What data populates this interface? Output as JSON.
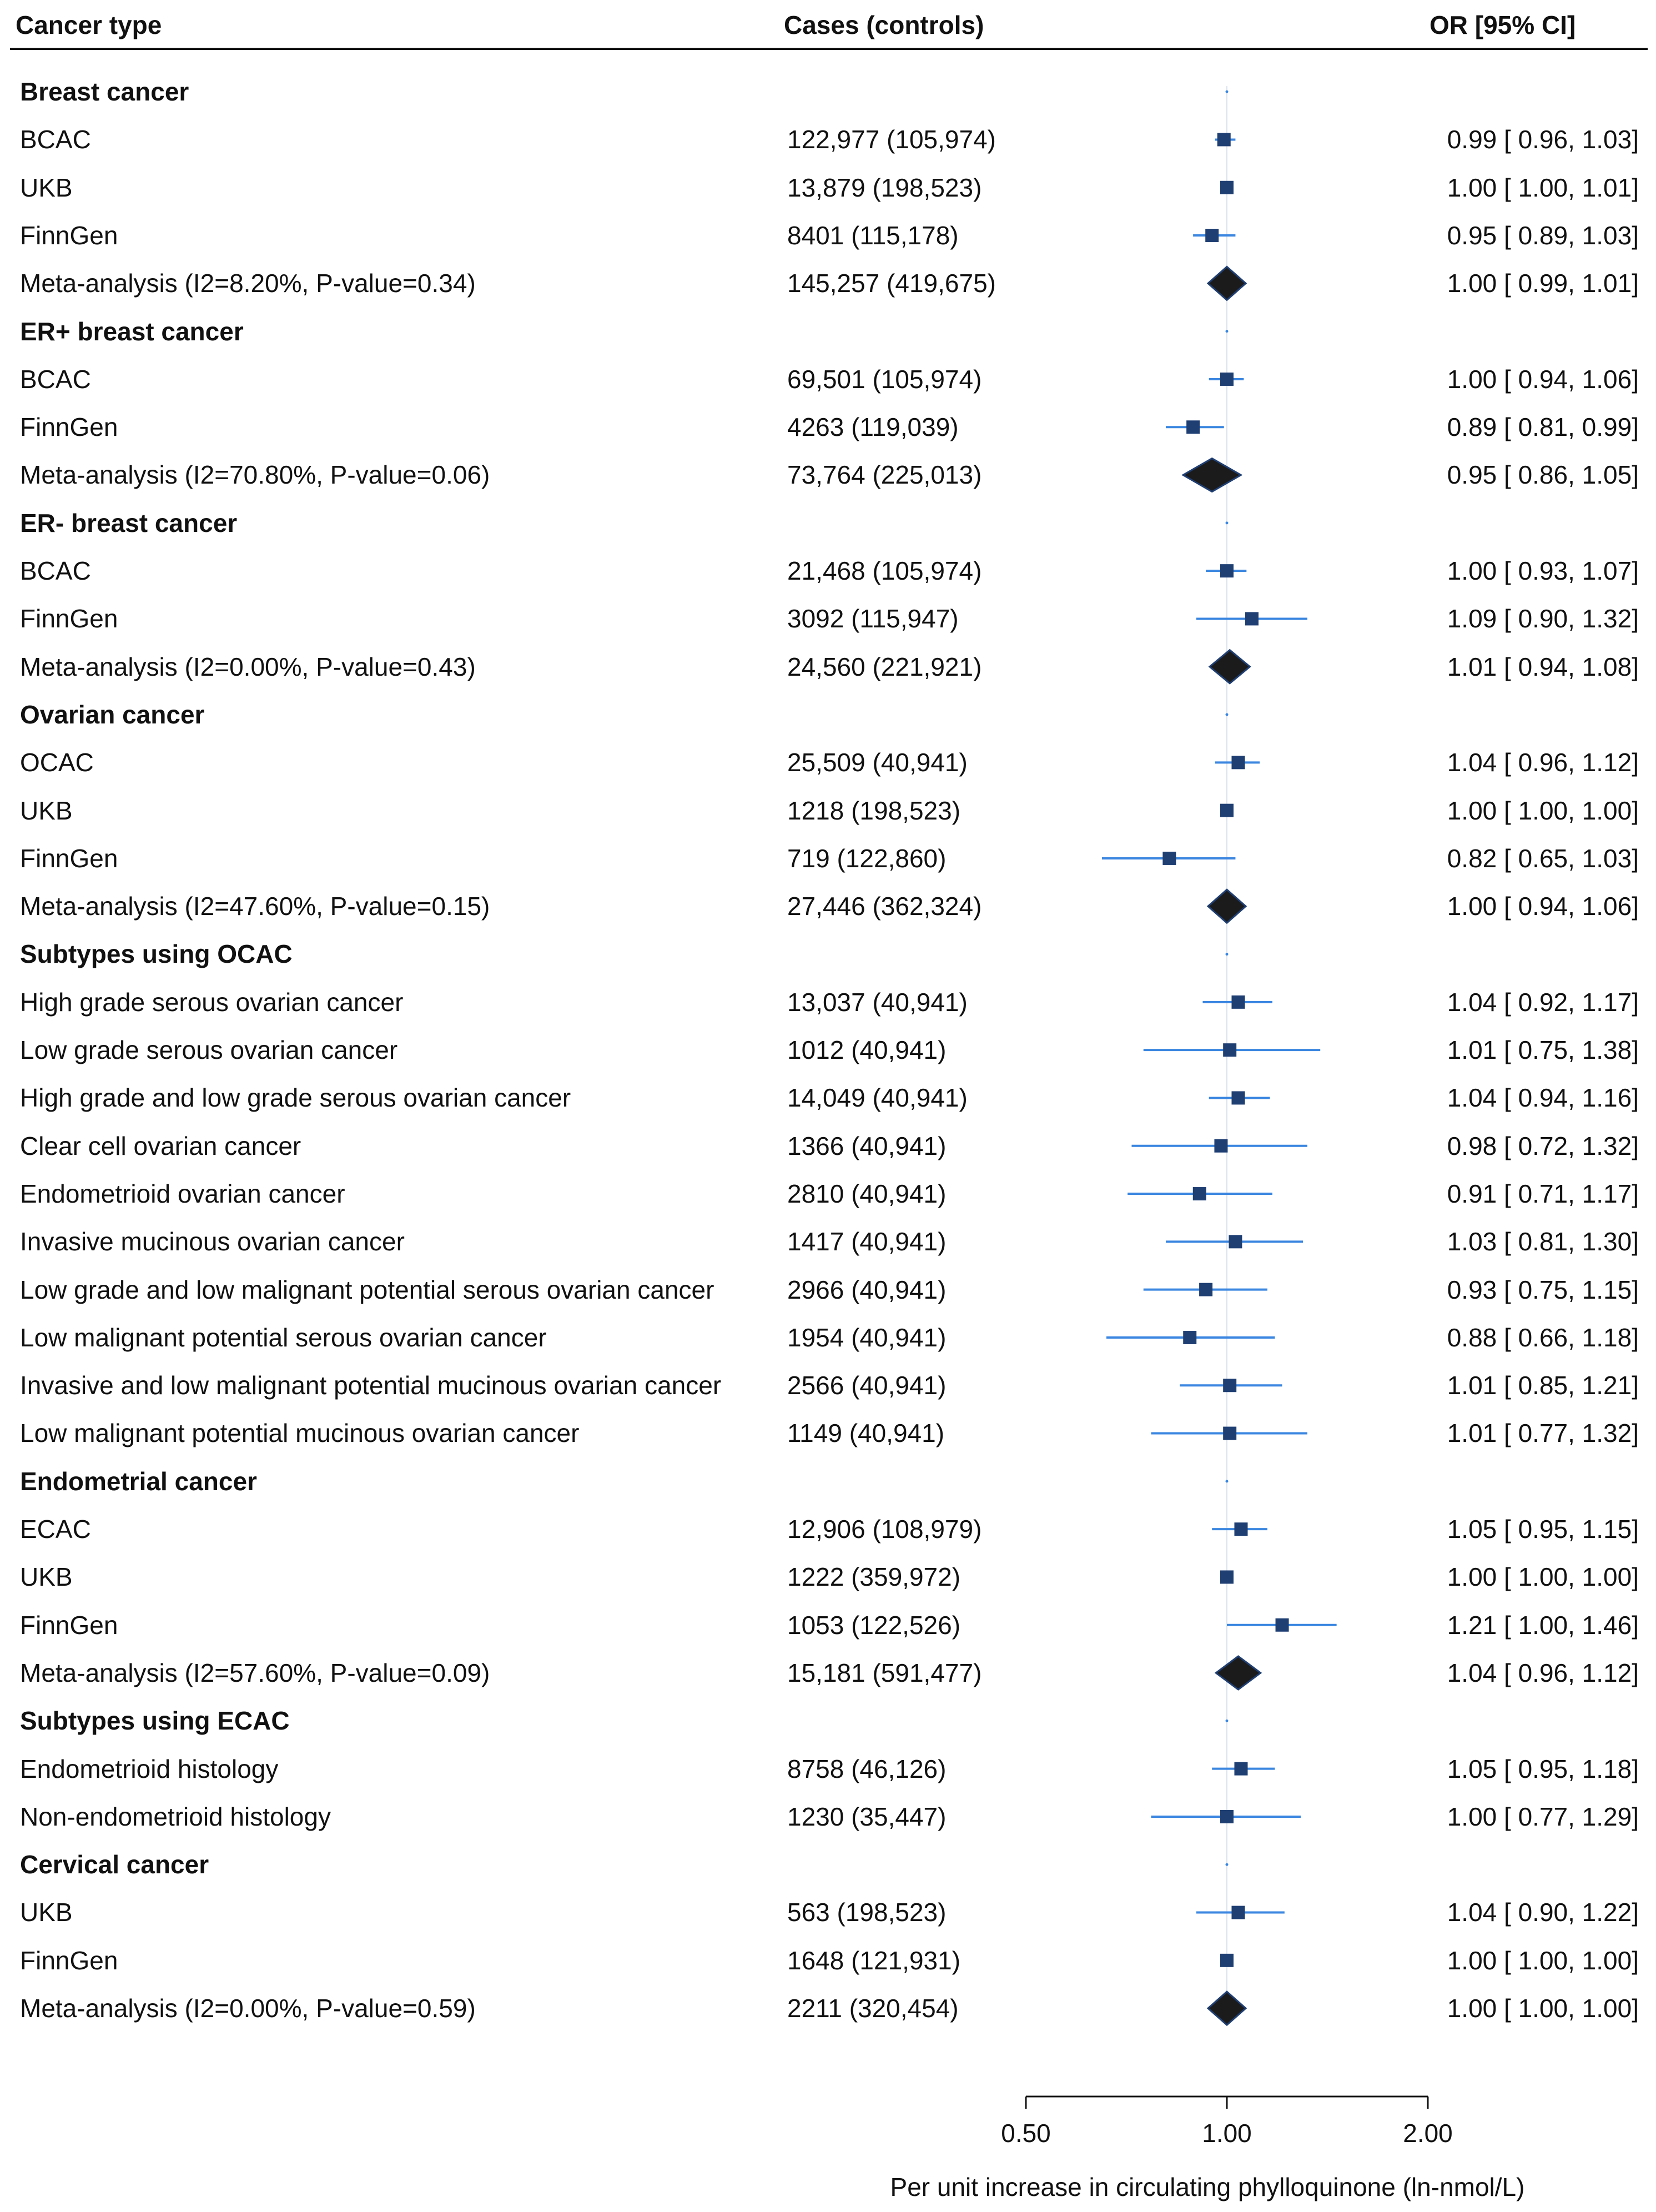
{
  "header": {
    "col_type": "Cancer type",
    "col_cases": "Cases (controls)",
    "col_or": "OR [95% CI]"
  },
  "colors": {
    "ci_line": "#3a86e0",
    "point": "#1f3f73",
    "diamond": "#1b1b1b",
    "ref_line": "#d9e3ee",
    "axis": "#111111"
  },
  "chart_data": {
    "type": "forest",
    "title": "",
    "xlabel": "Per unit increase in circulating phylloquinone (ln-nmol/L)",
    "x_scale": "log",
    "xlim": [
      0.5,
      2.0
    ],
    "xticks": [
      0.5,
      1.0,
      2.0
    ],
    "xtick_labels": [
      "0.50",
      "1.00",
      "2.00"
    ],
    "reference_line": 1.0,
    "rows": [
      {
        "label": "Breast cancer",
        "kind": "group"
      },
      {
        "label": "BCAC",
        "kind": "study",
        "cases": "122,977 (105,974)",
        "or": 0.99,
        "lo": 0.96,
        "hi": 1.03,
        "or_text": "0.99 [ 0.96,  1.03]"
      },
      {
        "label": "UKB",
        "kind": "study",
        "cases": "13,879 (198,523)",
        "or": 1.0,
        "lo": 1.0,
        "hi": 1.01,
        "or_text": "1.00 [ 1.00,  1.01]"
      },
      {
        "label": "FinnGen",
        "kind": "study",
        "cases": "8401 (115,178)",
        "or": 0.95,
        "lo": 0.89,
        "hi": 1.03,
        "or_text": "0.95 [ 0.89,  1.03]"
      },
      {
        "label": "Meta-analysis (I2=8.20%, P-value=0.34)",
        "kind": "meta",
        "cases": "145,257 (419,675)",
        "or": 1.0,
        "lo": 0.99,
        "hi": 1.01,
        "or_text": "1.00 [ 0.99,  1.01]"
      },
      {
        "label": "ER+ breast cancer",
        "kind": "group"
      },
      {
        "label": "BCAC",
        "kind": "study",
        "cases": "69,501 (105,974)",
        "or": 1.0,
        "lo": 0.94,
        "hi": 1.06,
        "or_text": "1.00 [ 0.94,  1.06]"
      },
      {
        "label": "FinnGen",
        "kind": "study",
        "cases": "4263 (119,039)",
        "or": 0.89,
        "lo": 0.81,
        "hi": 0.99,
        "or_text": "0.89 [ 0.81,  0.99]"
      },
      {
        "label": "Meta-analysis (I2=70.80%, P-value=0.06)",
        "kind": "meta",
        "cases": "73,764 (225,013)",
        "or": 0.95,
        "lo": 0.86,
        "hi": 1.05,
        "or_text": "0.95 [ 0.86,  1.05]"
      },
      {
        "label": "ER- breast cancer",
        "kind": "group"
      },
      {
        "label": "BCAC",
        "kind": "study",
        "cases": "21,468 (105,974)",
        "or": 1.0,
        "lo": 0.93,
        "hi": 1.07,
        "or_text": "1.00 [ 0.93,  1.07]"
      },
      {
        "label": "FinnGen",
        "kind": "study",
        "cases": "3092 (115,947)",
        "or": 1.09,
        "lo": 0.9,
        "hi": 1.32,
        "or_text": "1.09 [ 0.90,  1.32]"
      },
      {
        "label": "Meta-analysis (I2=0.00%, P-value=0.43)",
        "kind": "meta",
        "cases": "24,560 (221,921)",
        "or": 1.01,
        "lo": 0.94,
        "hi": 1.08,
        "or_text": "1.01 [ 0.94,  1.08]"
      },
      {
        "label": "Ovarian cancer",
        "kind": "group"
      },
      {
        "label": "OCAC",
        "kind": "study",
        "cases": "25,509 (40,941)",
        "or": 1.04,
        "lo": 0.96,
        "hi": 1.12,
        "or_text": "1.04 [ 0.96,  1.12]"
      },
      {
        "label": "UKB",
        "kind": "study",
        "cases": "1218 (198,523)",
        "or": 1.0,
        "lo": 1.0,
        "hi": 1.0,
        "or_text": "1.00 [ 1.00,  1.00]"
      },
      {
        "label": "FinnGen",
        "kind": "study",
        "cases": "719 (122,860)",
        "or": 0.82,
        "lo": 0.65,
        "hi": 1.03,
        "or_text": "0.82 [ 0.65,  1.03]"
      },
      {
        "label": "Meta-analysis (I2=47.60%, P-value=0.15)",
        "kind": "meta",
        "cases": "27,446 (362,324)",
        "or": 1.0,
        "lo": 0.94,
        "hi": 1.06,
        "or_text": "1.00 [ 0.94,  1.06]"
      },
      {
        "label": "Subtypes using OCAC",
        "kind": "group"
      },
      {
        "label": "High grade serous ovarian cancer",
        "kind": "study",
        "cases": "13,037 (40,941)",
        "or": 1.04,
        "lo": 0.92,
        "hi": 1.17,
        "or_text": "1.04 [ 0.92,  1.17]"
      },
      {
        "label": "Low grade serous ovarian cancer",
        "kind": "study",
        "cases": "1012 (40,941)",
        "or": 1.01,
        "lo": 0.75,
        "hi": 1.38,
        "or_text": "1.01 [ 0.75,  1.38]"
      },
      {
        "label": "High grade and low grade serous ovarian cancer",
        "kind": "study",
        "cases": "14,049 (40,941)",
        "or": 1.04,
        "lo": 0.94,
        "hi": 1.16,
        "or_text": "1.04 [ 0.94,  1.16]"
      },
      {
        "label": "Clear cell ovarian cancer",
        "kind": "study",
        "cases": "1366 (40,941)",
        "or": 0.98,
        "lo": 0.72,
        "hi": 1.32,
        "or_text": "0.98 [ 0.72,  1.32]"
      },
      {
        "label": "Endometrioid ovarian cancer",
        "kind": "study",
        "cases": "2810 (40,941)",
        "or": 0.91,
        "lo": 0.71,
        "hi": 1.17,
        "or_text": "0.91 [ 0.71,  1.17]"
      },
      {
        "label": "Invasive mucinous ovarian cancer",
        "kind": "study",
        "cases": "1417 (40,941)",
        "or": 1.03,
        "lo": 0.81,
        "hi": 1.3,
        "or_text": "1.03 [ 0.81,  1.30]"
      },
      {
        "label": "Low grade and low malignant potential serous ovarian cancer",
        "kind": "study",
        "cases": "2966 (40,941)",
        "or": 0.93,
        "lo": 0.75,
        "hi": 1.15,
        "or_text": "0.93 [ 0.75,  1.15]"
      },
      {
        "label": "Low malignant potential serous ovarian cancer",
        "kind": "study",
        "cases": "1954 (40,941)",
        "or": 0.88,
        "lo": 0.66,
        "hi": 1.18,
        "or_text": "0.88 [ 0.66,  1.18]"
      },
      {
        "label": "Invasive and low malignant potential mucinous ovarian cancer",
        "kind": "study",
        "cases": "2566 (40,941)",
        "or": 1.01,
        "lo": 0.85,
        "hi": 1.21,
        "or_text": "1.01 [ 0.85,  1.21]"
      },
      {
        "label": "Low malignant potential mucinous ovarian cancer",
        "kind": "study",
        "cases": "1149 (40,941)",
        "or": 1.01,
        "lo": 0.77,
        "hi": 1.32,
        "or_text": "1.01 [ 0.77,  1.32]"
      },
      {
        "label": "Endometrial cancer",
        "kind": "group"
      },
      {
        "label": "ECAC",
        "kind": "study",
        "cases": "12,906 (108,979)",
        "or": 1.05,
        "lo": 0.95,
        "hi": 1.15,
        "or_text": "1.05 [ 0.95,  1.15]"
      },
      {
        "label": "UKB",
        "kind": "study",
        "cases": "1222 (359,972)",
        "or": 1.0,
        "lo": 1.0,
        "hi": 1.0,
        "or_text": "1.00 [ 1.00,  1.00]"
      },
      {
        "label": "FinnGen",
        "kind": "study",
        "cases": "1053 (122,526)",
        "or": 1.21,
        "lo": 1.0,
        "hi": 1.46,
        "or_text": "1.21 [ 1.00,  1.46]"
      },
      {
        "label": "Meta-analysis (I2=57.60%, P-value=0.09)",
        "kind": "meta",
        "cases": "15,181 (591,477)",
        "or": 1.04,
        "lo": 0.96,
        "hi": 1.12,
        "or_text": "1.04 [ 0.96,  1.12]"
      },
      {
        "label": "Subtypes using ECAC",
        "kind": "group"
      },
      {
        "label": "Endometrioid histology",
        "kind": "study",
        "cases": "8758 (46,126)",
        "or": 1.05,
        "lo": 0.95,
        "hi": 1.18,
        "or_text": "1.05 [ 0.95,  1.18]"
      },
      {
        "label": "Non-endometrioid histology",
        "kind": "study",
        "cases": "1230 (35,447)",
        "or": 1.0,
        "lo": 0.77,
        "hi": 1.29,
        "or_text": "1.00 [ 0.77,  1.29]"
      },
      {
        "label": "Cervical cancer",
        "kind": "group"
      },
      {
        "label": "UKB",
        "kind": "study",
        "cases": "563 (198,523)",
        "or": 1.04,
        "lo": 0.9,
        "hi": 1.22,
        "or_text": "1.04 [ 0.90,  1.22]"
      },
      {
        "label": "FinnGen",
        "kind": "study",
        "cases": "1648 (121,931)",
        "or": 1.0,
        "lo": 1.0,
        "hi": 1.0,
        "or_text": "1.00 [ 1.00,  1.00]"
      },
      {
        "label": "Meta-analysis (I2=0.00%, P-value=0.59)",
        "kind": "meta",
        "cases": "2211 (320,454)",
        "or": 1.0,
        "lo": 1.0,
        "hi": 1.0,
        "or_text": "1.00 [ 1.00,  1.00]"
      }
    ]
  }
}
